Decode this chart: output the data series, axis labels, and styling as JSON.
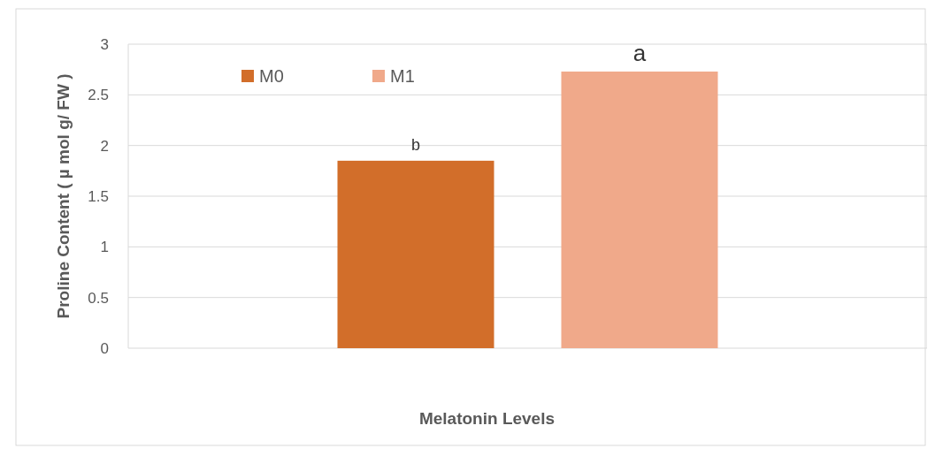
{
  "chart_data": {
    "type": "bar",
    "ylabel": "Proline Content ( µ mol g/ FW )",
    "xlabel": "Melatonin Levels",
    "categories": [
      null
    ],
    "series": [
      {
        "name": "M0",
        "color": "#d26e2a",
        "values": [
          1.85
        ]
      },
      {
        "name": "M1",
        "color": "#f0a98a",
        "values": [
          2.73
        ]
      }
    ],
    "ylim": [
      0,
      3
    ],
    "yticks": [
      0,
      0.5,
      1,
      1.5,
      2,
      2.5,
      3
    ],
    "grid": "y",
    "legend": "top left",
    "annotations": [
      {
        "text": "b",
        "y": 1.85
      },
      {
        "text": "a",
        "y": 2.73
      }
    ]
  }
}
